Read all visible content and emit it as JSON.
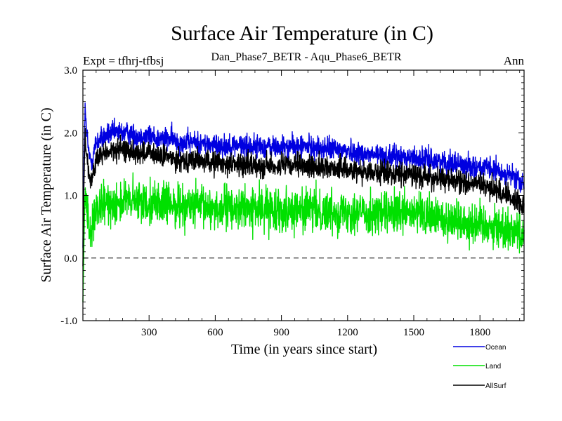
{
  "chart_data": {
    "type": "line",
    "title": "Surface Air Temperature (in C)",
    "subtitle": "Dan_Phase7_BETR - Aqu_Phase6_BETR",
    "expt_label": "Expt = tfhrj-tfbsj",
    "season_label": "Ann",
    "xlabel": "Time (in years since start)",
    "ylabel": "Surface Air Temperature (in C)",
    "xlim": [
      0,
      2000
    ],
    "ylim": [
      -1.0,
      3.0
    ],
    "x_ticks": [
      300,
      600,
      900,
      1200,
      1500,
      1800
    ],
    "x_tick_labels": [
      "300",
      "600",
      "900",
      "1200",
      "1500",
      "1800"
    ],
    "y_ticks": [
      -1.0,
      0.0,
      1.0,
      2.0,
      3.0
    ],
    "y_tick_labels": [
      "-1.0",
      "0.0",
      "1.0",
      "2.0",
      "3.0"
    ],
    "zero_line": 0.0,
    "series": [
      {
        "name": "Ocean",
        "color": "#0000e0",
        "noise": 0.09,
        "x": [
          0,
          5,
          10,
          15,
          20,
          30,
          40,
          50,
          60,
          80,
          100,
          150,
          200,
          250,
          300,
          350,
          400,
          450,
          500,
          600,
          700,
          800,
          900,
          1000,
          1100,
          1200,
          1300,
          1400,
          1500,
          1600,
          1700,
          1800,
          1850,
          1900,
          1950,
          2000
        ],
        "values": [
          0.2,
          1.6,
          2.35,
          2.1,
          1.9,
          1.6,
          1.55,
          1.7,
          1.85,
          1.9,
          1.95,
          2.0,
          2.0,
          1.95,
          1.95,
          1.9,
          1.9,
          1.85,
          1.85,
          1.8,
          1.8,
          1.78,
          1.77,
          1.78,
          1.75,
          1.72,
          1.65,
          1.62,
          1.6,
          1.55,
          1.5,
          1.45,
          1.42,
          1.35,
          1.3,
          1.15
        ]
      },
      {
        "name": "Land",
        "color": "#00e000",
        "noise": 0.17,
        "x": [
          0,
          5,
          10,
          15,
          20,
          30,
          40,
          50,
          60,
          80,
          100,
          150,
          200,
          250,
          300,
          350,
          400,
          450,
          500,
          600,
          700,
          800,
          900,
          1000,
          1100,
          1200,
          1300,
          1400,
          1500,
          1600,
          1700,
          1800,
          1850,
          1900,
          1950,
          2000
        ],
        "values": [
          -0.75,
          0.3,
          1.1,
          0.9,
          0.7,
          0.5,
          0.45,
          0.55,
          0.7,
          0.8,
          0.85,
          0.9,
          0.9,
          0.9,
          0.9,
          0.88,
          0.85,
          0.85,
          0.82,
          0.8,
          0.8,
          0.78,
          0.78,
          0.77,
          0.75,
          0.75,
          0.72,
          0.7,
          0.7,
          0.65,
          0.6,
          0.55,
          0.52,
          0.48,
          0.45,
          0.4
        ]
      },
      {
        "name": "AllSurf",
        "color": "#000000",
        "noise": 0.09,
        "x": [
          0,
          5,
          10,
          15,
          20,
          30,
          40,
          50,
          60,
          80,
          100,
          150,
          200,
          250,
          300,
          350,
          400,
          450,
          500,
          600,
          700,
          800,
          900,
          1000,
          1100,
          1200,
          1300,
          1400,
          1500,
          1600,
          1700,
          1800,
          1850,
          1900,
          1950,
          2000
        ],
        "values": [
          -0.15,
          1.2,
          2.0,
          1.75,
          1.55,
          1.3,
          1.25,
          1.4,
          1.55,
          1.62,
          1.68,
          1.72,
          1.72,
          1.68,
          1.67,
          1.62,
          1.6,
          1.57,
          1.56,
          1.52,
          1.5,
          1.48,
          1.47,
          1.47,
          1.45,
          1.42,
          1.38,
          1.35,
          1.33,
          1.27,
          1.22,
          1.17,
          1.12,
          1.05,
          0.95,
          0.85
        ]
      }
    ]
  }
}
